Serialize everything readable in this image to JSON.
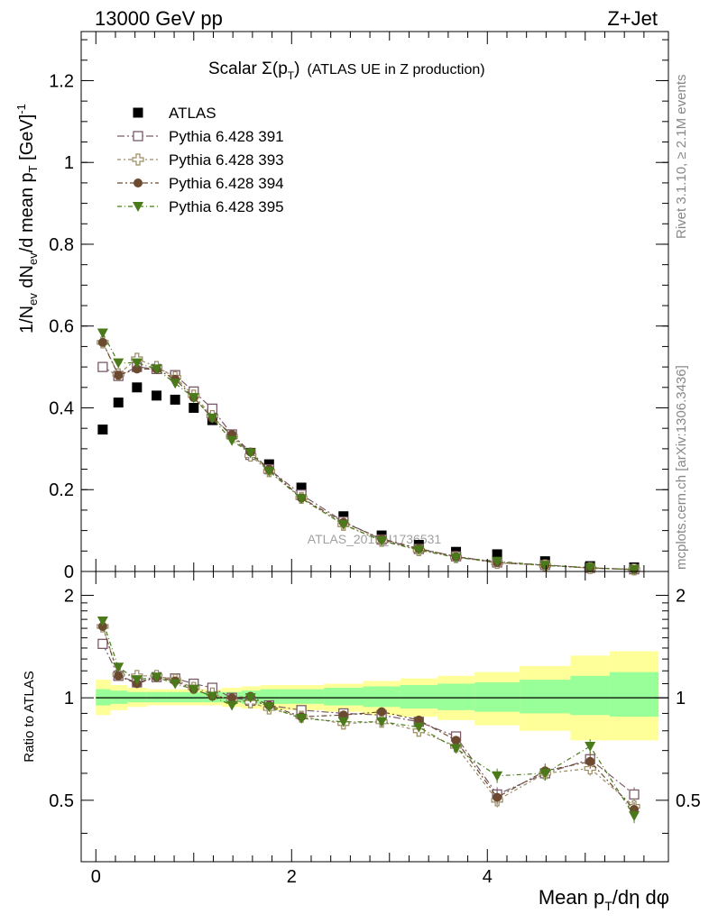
{
  "header": {
    "left": "13000 GeV pp",
    "right": "Z+Jet"
  },
  "side_labels": {
    "rivet": "Rivet 3.1.10, ≥ 2.1M events",
    "mcplots": "mcplots.cern.ch [arXiv:1306.3436]"
  },
  "watermark": "ATLAS_2019_I1736531",
  "chart_data": [
    {
      "type": "scatter",
      "title": "Scalar Σ(pT) (ATLAS UE in Z production)",
      "title_main": "Scalar Σ(p",
      "title_sub": "T",
      "title_close": ")",
      "title_extra": "(ATLAS UE in Z production)",
      "ylabel": "1/Nev dNev/d mean pT [GeV]-1",
      "ylabel_parts": {
        "a": "1/N",
        "b": "ev",
        "c": " dN",
        "d": "ev",
        "e": "/d mean p",
        "f": "T",
        "g": " [GeV]",
        "h": "-1"
      },
      "xlim": [
        -0.15,
        5.85
      ],
      "ylim": [
        0,
        1.32
      ],
      "log_y": false,
      "x": [
        0.07,
        0.23,
        0.42,
        0.62,
        0.81,
        1.0,
        1.19,
        1.39,
        1.58,
        1.77,
        2.1,
        2.53,
        2.92,
        3.3,
        3.68,
        4.1,
        4.59,
        5.05,
        5.5
      ],
      "yticks": [
        0,
        0.2,
        0.4,
        0.6,
        0.8,
        1,
        1.2
      ],
      "ytick_labels": [
        "0",
        "0.2",
        "0.4",
        "0.6",
        "0.8",
        "1",
        "1.2"
      ],
      "legend_position": "top-left",
      "series": [
        {
          "name": "ATLAS",
          "marker": "square-filled",
          "color": "#000000",
          "values": [
            0.347,
            0.413,
            0.45,
            0.43,
            0.42,
            0.4,
            0.37,
            0.335,
            0.29,
            0.262,
            0.205,
            0.135,
            0.088,
            0.065,
            0.048,
            0.042,
            0.025,
            0.013,
            0.01
          ]
        },
        {
          "name": "Pythia 6.428 391",
          "marker": "square-open",
          "color": "#7a5a6a",
          "values": [
            0.5,
            0.478,
            0.5,
            0.495,
            0.48,
            0.44,
            0.398,
            0.335,
            0.285,
            0.25,
            0.188,
            0.122,
            0.078,
            0.055,
            0.037,
            0.022,
            0.016,
            0.0087,
            0.0053
          ]
        },
        {
          "name": "Pythia 6.428 393",
          "marker": "cross-open",
          "color": "#9a8a60",
          "values": [
            0.56,
            0.482,
            0.52,
            0.5,
            0.475,
            0.43,
            0.38,
            0.33,
            0.283,
            0.245,
            0.18,
            0.114,
            0.075,
            0.052,
            0.035,
            0.021,
            0.015,
            0.0081,
            0.0048
          ]
        },
        {
          "name": "Pythia 6.428 394",
          "marker": "circle-filled",
          "color": "#6b4a30",
          "values": [
            0.56,
            0.48,
            0.495,
            0.495,
            0.47,
            0.425,
            0.375,
            0.335,
            0.292,
            0.25,
            0.18,
            0.12,
            0.08,
            0.056,
            0.036,
            0.0215,
            0.0152,
            0.0085,
            0.0047
          ]
        },
        {
          "name": "Pythia 6.428 395",
          "marker": "triangle-down-filled",
          "color": "#4a7a1a",
          "values": [
            0.583,
            0.51,
            0.51,
            0.495,
            0.46,
            0.425,
            0.375,
            0.32,
            0.29,
            0.245,
            0.178,
            0.115,
            0.075,
            0.053,
            0.034,
            0.0248,
            0.015,
            0.0094,
            0.0045
          ]
        }
      ]
    },
    {
      "type": "scatter",
      "ylabel": "Ratio to ATLAS",
      "xlabel": "Mean pT/dη dφ",
      "xlabel_parts": {
        "a": "Mean p",
        "b": "T",
        "c": "/dη dφ"
      },
      "xlim": [
        -0.15,
        5.85
      ],
      "ylim": [
        0.33,
        2.35
      ],
      "log_y": true,
      "xticks": [
        0,
        2,
        4
      ],
      "xtick_labels": [
        "0",
        "2",
        "4"
      ],
      "yticks": [
        0.5,
        1,
        2
      ],
      "ytick_labels": [
        "0.5",
        "1",
        "2"
      ],
      "reference_line": 1,
      "band_edges": [
        0,
        0.15,
        0.32,
        0.52,
        0.72,
        0.91,
        1.1,
        1.29,
        1.49,
        1.68,
        1.87,
        2.33,
        2.73,
        3.11,
        3.49,
        3.87,
        4.33,
        4.85,
        5.25,
        5.75
      ],
      "band_stat_lo": [
        0.95,
        0.96,
        0.97,
        0.97,
        0.97,
        0.97,
        0.97,
        0.97,
        0.96,
        0.96,
        0.96,
        0.95,
        0.94,
        0.93,
        0.92,
        0.91,
        0.9,
        0.89,
        0.88
      ],
      "band_stat_hi": [
        1.06,
        1.05,
        1.04,
        1.04,
        1.04,
        1.04,
        1.04,
        1.04,
        1.05,
        1.06,
        1.06,
        1.07,
        1.08,
        1.09,
        1.1,
        1.11,
        1.13,
        1.16,
        1.19
      ],
      "band_total_lo": [
        0.89,
        0.92,
        0.94,
        0.95,
        0.95,
        0.95,
        0.95,
        0.94,
        0.93,
        0.92,
        0.92,
        0.91,
        0.89,
        0.88,
        0.86,
        0.83,
        0.8,
        0.75,
        0.75
      ],
      "band_total_hi": [
        1.13,
        1.09,
        1.07,
        1.06,
        1.06,
        1.06,
        1.06,
        1.07,
        1.08,
        1.09,
        1.09,
        1.1,
        1.12,
        1.14,
        1.16,
        1.19,
        1.24,
        1.33,
        1.37
      ],
      "band_colors": {
        "total": "#ffff99",
        "stat": "#99ff99"
      },
      "series": [
        {
          "name": "Pythia 6.428 391",
          "marker": "square-open",
          "color": "#7a5a6a",
          "values": [
            1.44,
            1.16,
            1.11,
            1.15,
            1.14,
            1.1,
            1.07,
            1.0,
            0.98,
            0.95,
            0.92,
            0.9,
            0.89,
            0.85,
            0.77,
            0.52,
            0.6,
            0.66,
            0.52
          ]
        },
        {
          "name": "Pythia 6.428 393",
          "marker": "cross-open",
          "color": "#9a8a60",
          "values": [
            1.62,
            1.17,
            1.16,
            1.16,
            1.13,
            1.07,
            1.03,
            0.98,
            0.97,
            0.93,
            0.88,
            0.84,
            0.85,
            0.8,
            0.72,
            0.5,
            0.6,
            0.62,
            0.48
          ]
        },
        {
          "name": "Pythia 6.428 394",
          "marker": "circle-filled",
          "color": "#6b4a30",
          "values": [
            1.62,
            1.16,
            1.1,
            1.15,
            1.12,
            1.06,
            1.01,
            1.0,
            1.01,
            0.95,
            0.88,
            0.89,
            0.91,
            0.86,
            0.75,
            0.51,
            0.61,
            0.65,
            0.47
          ]
        },
        {
          "name": "Pythia 6.428 395",
          "marker": "triangle-down-filled",
          "color": "#4a7a1a",
          "values": [
            1.68,
            1.23,
            1.13,
            1.15,
            1.1,
            1.06,
            1.01,
            0.95,
            1.0,
            0.94,
            0.87,
            0.85,
            0.85,
            0.82,
            0.71,
            0.59,
            0.6,
            0.72,
            0.45
          ]
        }
      ]
    }
  ]
}
